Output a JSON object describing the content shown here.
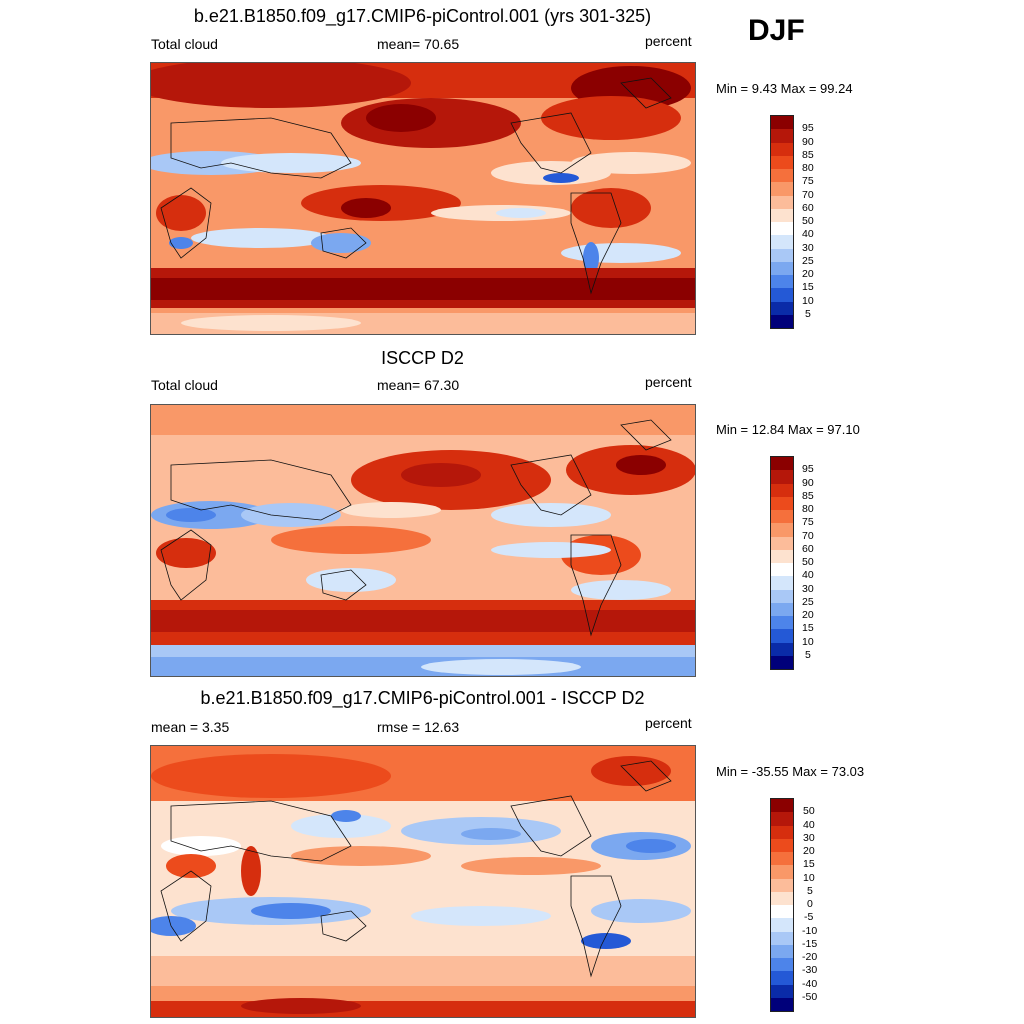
{
  "season": "DJF",
  "panels": [
    {
      "title": "b.e21.B1850.f09_g17.CMIP6-piControl.001 (yrs 301-325)",
      "left_label": "Total cloud",
      "center_label": "mean=  70.65",
      "right_label": "percent",
      "minmax": "Min =   9.43 Max =  99.24",
      "colorbar_labels": [
        "95",
        "90",
        "85",
        "80",
        "75",
        "70",
        "60",
        "50",
        "40",
        "30",
        "25",
        "20",
        "15",
        "10",
        "5"
      ],
      "colorbar_colors": [
        "#8b0000",
        "#b5170a",
        "#d62e0e",
        "#ec4b1c",
        "#f5703c",
        "#f99868",
        "#fcbc9a",
        "#fde2cf",
        "#ffffff",
        "#d4e6fb",
        "#a9c8f6",
        "#7ba8f0",
        "#4d84ea",
        "#2459d6",
        "#0a2ba8",
        "#00007a"
      ]
    },
    {
      "title": "ISCCP D2",
      "left_label": "Total cloud",
      "center_label": "mean=  67.30",
      "right_label": "percent",
      "minmax": "Min =  12.84 Max =  97.10",
      "colorbar_labels": [
        "95",
        "90",
        "85",
        "80",
        "75",
        "70",
        "60",
        "50",
        "40",
        "30",
        "25",
        "20",
        "15",
        "10",
        "5"
      ],
      "colorbar_colors": [
        "#8b0000",
        "#b5170a",
        "#d62e0e",
        "#ec4b1c",
        "#f5703c",
        "#f99868",
        "#fcbc9a",
        "#fde2cf",
        "#ffffff",
        "#d4e6fb",
        "#a9c8f6",
        "#7ba8f0",
        "#4d84ea",
        "#2459d6",
        "#0a2ba8",
        "#00007a"
      ]
    },
    {
      "title": "b.e21.B1850.f09_g17.CMIP6-piControl.001 - ISCCP D2",
      "left_label": "mean =   3.35",
      "center_label": "rmse =  12.63",
      "right_label": "percent",
      "minmax": "Min = -35.55 Max =  73.03",
      "colorbar_labels": [
        "50",
        "40",
        "30",
        "20",
        "15",
        "10",
        "5",
        "0",
        "-5",
        "-10",
        "-15",
        "-20",
        "-30",
        "-40",
        "-50"
      ],
      "colorbar_colors": [
        "#8b0000",
        "#b5170a",
        "#d62e0e",
        "#ec4b1c",
        "#f5703c",
        "#f99868",
        "#fcbc9a",
        "#fde2cf",
        "#ffffff",
        "#d4e6fb",
        "#a9c8f6",
        "#7ba8f0",
        "#4d84ea",
        "#2459d6",
        "#0a2ba8",
        "#00007a"
      ]
    }
  ]
}
